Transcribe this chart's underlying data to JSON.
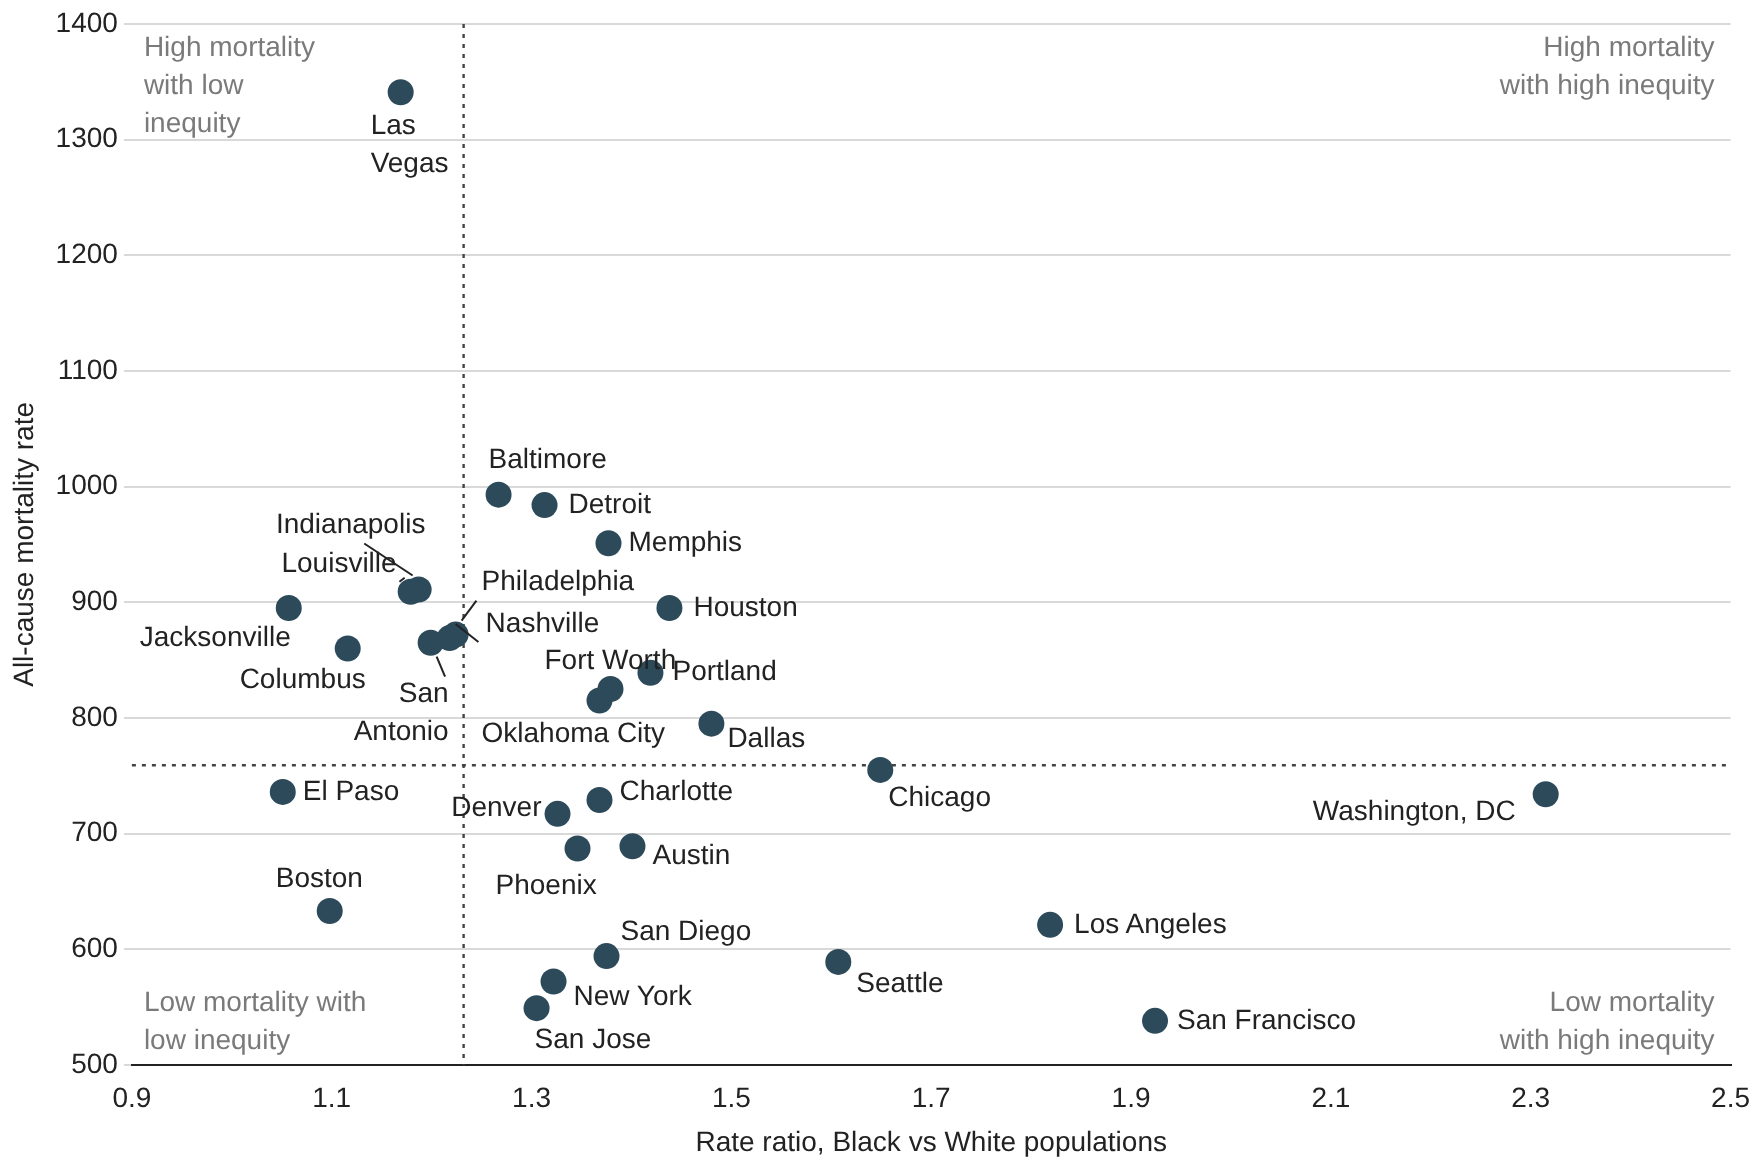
{
  "chart_data": {
    "type": "scatter",
    "xlabel": "Rate ratio, Black vs White populations",
    "ylabel": "All-cause mortality rate",
    "xlim": [
      0.9,
      2.5
    ],
    "xticks": [
      0.9,
      1.1,
      1.3,
      1.5,
      1.7,
      1.9,
      2.1,
      2.3,
      2.5
    ],
    "ylim": [
      500,
      1400
    ],
    "yticks": [
      500,
      600,
      700,
      800,
      900,
      1000,
      1100,
      1200,
      1300,
      1400
    ],
    "grid": "y",
    "legend": false,
    "marker": "circle",
    "x": [
      1.169,
      1.267,
      1.313,
      1.377,
      1.187,
      1.179,
      1.438,
      1.057,
      1.224,
      1.218,
      1.199,
      1.116,
      1.379,
      1.419,
      1.368,
      1.48,
      1.649,
      1.051,
      2.315,
      1.368,
      1.326,
      1.401,
      1.346,
      1.098,
      1.819,
      1.375,
      1.607,
      1.322,
      1.924,
      1.305
    ],
    "series": [
      {
        "color": "#2c4a5a",
        "values": [
          1341,
          993,
          984,
          951,
          911,
          909,
          895,
          895,
          872,
          869,
          865,
          860,
          825,
          839,
          815,
          795,
          755,
          736,
          734,
          729,
          717,
          689,
          687,
          633,
          621,
          594,
          589,
          572,
          538,
          549
        ]
      }
    ],
    "ref_lines": [
      {
        "axis": "x",
        "value": 1.232,
        "color": "#444444",
        "line_style": "dotted"
      },
      {
        "axis": "y",
        "value": 759,
        "color": "#444444",
        "line_style": "dotted"
      }
    ],
    "annotations": [
      {
        "text": "Las Vegas",
        "x": 1.169,
        "y": 1341
      },
      {
        "text": "Baltimore",
        "x": 1.267,
        "y": 993
      },
      {
        "text": "Detroit",
        "x": 1.313,
        "y": 984
      },
      {
        "text": "Memphis",
        "x": 1.377,
        "y": 951
      },
      {
        "text": "Indianapolis",
        "x": 1.187,
        "y": 911
      },
      {
        "text": "Louisville",
        "x": 1.179,
        "y": 909
      },
      {
        "text": "Houston",
        "x": 1.438,
        "y": 895
      },
      {
        "text": "Jacksonville",
        "x": 1.057,
        "y": 895
      },
      {
        "text": "Philadelphia",
        "x": 1.224,
        "y": 872
      },
      {
        "text": "Nashville",
        "x": 1.218,
        "y": 869
      },
      {
        "text": "San Antonio",
        "x": 1.199,
        "y": 865
      },
      {
        "text": "Columbus",
        "x": 1.116,
        "y": 860
      },
      {
        "text": "Fort Worth",
        "x": 1.379,
        "y": 825
      },
      {
        "text": "Portland",
        "x": 1.419,
        "y": 839
      },
      {
        "text": "Oklahoma City",
        "x": 1.368,
        "y": 815
      },
      {
        "text": "Dallas",
        "x": 1.48,
        "y": 795
      },
      {
        "text": "Chicago",
        "x": 1.649,
        "y": 755
      },
      {
        "text": "El Paso",
        "x": 1.051,
        "y": 736
      },
      {
        "text": "Washington, DC",
        "x": 2.315,
        "y": 734
      },
      {
        "text": "Charlotte",
        "x": 1.368,
        "y": 729
      },
      {
        "text": "Denver",
        "x": 1.326,
        "y": 717
      },
      {
        "text": "Austin",
        "x": 1.401,
        "y": 689
      },
      {
        "text": "Phoenix",
        "x": 1.346,
        "y": 687
      },
      {
        "text": "Boston",
        "x": 1.098,
        "y": 633
      },
      {
        "text": "Los Angeles",
        "x": 1.819,
        "y": 621
      },
      {
        "text": "San Diego",
        "x": 1.375,
        "y": 594
      },
      {
        "text": "Seattle",
        "x": 1.607,
        "y": 589
      },
      {
        "text": "New York",
        "x": 1.322,
        "y": 572
      },
      {
        "text": "San Francisco",
        "x": 1.924,
        "y": 538
      },
      {
        "text": "San Jose",
        "x": 1.305,
        "y": 549
      },
      "High mortality\nwith low\ninequity",
      "High mortality\nwith high inequity",
      "Low mortality with\nlow inequity",
      "Low mortality\nwith high inequity"
    ]
  }
}
